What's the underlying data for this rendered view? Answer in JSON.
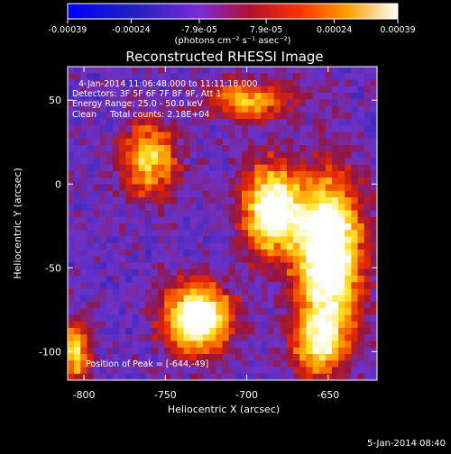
{
  "chart_data": {
    "type": "heatmap",
    "title": "Reconstructed RHESSI Image",
    "xlabel": "Heliocentric X (arcsec)",
    "ylabel": "Heliocentric Y (arcsec)",
    "xlim": [
      -810,
      -620
    ],
    "ylim": [
      -117,
      70
    ],
    "x_ticks": [
      "-800",
      "-750",
      "-700",
      "-650"
    ],
    "x_tick_values": [
      -800,
      -750,
      -700,
      -650
    ],
    "y_ticks": [
      "50",
      "0",
      "-50",
      "-100"
    ],
    "y_tick_values": [
      50,
      0,
      -50,
      -100
    ],
    "colorbar": {
      "ticks": [
        "-0.00039",
        "-0.00024",
        "-7.9e-05",
        "7.9e-05",
        "0.00024",
        "0.00039"
      ],
      "tick_values": [
        -0.00039,
        -0.00024,
        -7.9e-05,
        7.9e-05,
        0.00024,
        0.00039
      ],
      "range": [
        -0.00039,
        0.00039
      ],
      "units_line": "(photons cm⁻² s⁻¹ asec⁻²)"
    },
    "annotations": [
      "4-Jan-2014 11:06:48.000 to 11:11:18.000",
      "Detectors: 3F 5F 6F 7F 8F 9F, Att 1",
      "Energy Range: 25.0 - 50.0 keV",
      "Clean     Total counts: 2.18E+04",
      "Position of Peak = [-644,-49]"
    ],
    "peak_position": [
      -644,
      -49
    ],
    "intensity_regions": [
      {
        "center": [
          -650,
          -40
        ],
        "sigma": [
          14,
          30
        ],
        "amp": 1.0
      },
      {
        "center": [
          -685,
          -15
        ],
        "sigma": [
          12,
          18
        ],
        "amp": 0.85
      },
      {
        "center": [
          -730,
          -80
        ],
        "sigma": [
          14,
          14
        ],
        "amp": 0.9
      },
      {
        "center": [
          -760,
          15
        ],
        "sigma": [
          12,
          16
        ],
        "amp": 0.55
      },
      {
        "center": [
          -700,
          50
        ],
        "sigma": [
          18,
          8
        ],
        "amp": 0.5
      },
      {
        "center": [
          -805,
          -100
        ],
        "sigma": [
          6,
          12
        ],
        "amp": 0.6
      },
      {
        "center": [
          -655,
          -95
        ],
        "sigma": [
          12,
          14
        ],
        "amp": 0.55
      }
    ]
  },
  "footer": {
    "timestamp": "5-Jan-2014 08:40"
  }
}
